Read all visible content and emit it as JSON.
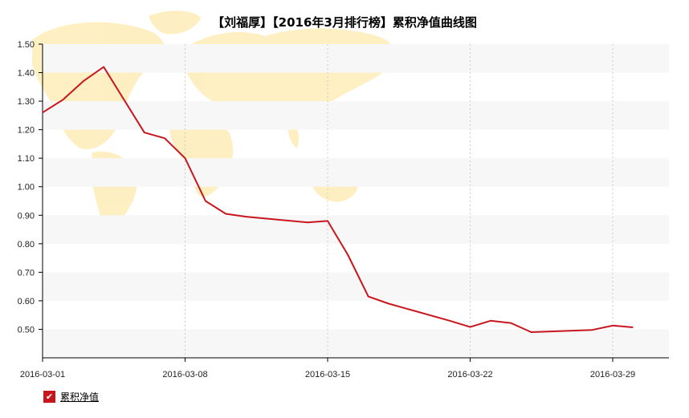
{
  "chart_data": {
    "type": "line",
    "title": "【刘福厚】【2016年3月排行榜】累积净值曲线图",
    "xlabel": "",
    "ylabel": "",
    "x_ticks": [
      "2016-03-01",
      "2016-03-08",
      "2016-03-15",
      "2016-03-22",
      "2016-03-29"
    ],
    "y_ticks": [
      "0.50",
      "0.60",
      "0.70",
      "0.80",
      "0.90",
      "1.00",
      "1.10",
      "1.20",
      "1.30",
      "1.40",
      "1.50"
    ],
    "ylim": [
      0.4,
      1.5
    ],
    "grid": {
      "x": true,
      "y": true
    },
    "legend_position": "bottom-left",
    "series": [
      {
        "name": "累积净值",
        "color": "#c8161d",
        "points": [
          {
            "x": "2016-03-01",
            "y": 1.26
          },
          {
            "x": "2016-03-02",
            "y": 1.305
          },
          {
            "x": "2016-03-03",
            "y": 1.37
          },
          {
            "x": "2016-03-04",
            "y": 1.42
          },
          {
            "x": "2016-03-06",
            "y": 1.19
          },
          {
            "x": "2016-03-07",
            "y": 1.17
          },
          {
            "x": "2016-03-08",
            "y": 1.1
          },
          {
            "x": "2016-03-09",
            "y": 0.95
          },
          {
            "x": "2016-03-10",
            "y": 0.905
          },
          {
            "x": "2016-03-11",
            "y": 0.895
          },
          {
            "x": "2016-03-14",
            "y": 0.875
          },
          {
            "x": "2016-03-15",
            "y": 0.88
          },
          {
            "x": "2016-03-16",
            "y": 0.76
          },
          {
            "x": "2016-03-17",
            "y": 0.615
          },
          {
            "x": "2016-03-18",
            "y": 0.59
          },
          {
            "x": "2016-03-21",
            "y": 0.53
          },
          {
            "x": "2016-03-22",
            "y": 0.508
          },
          {
            "x": "2016-03-23",
            "y": 0.53
          },
          {
            "x": "2016-03-24",
            "y": 0.522
          },
          {
            "x": "2016-03-25",
            "y": 0.49
          },
          {
            "x": "2016-03-28",
            "y": 0.498
          },
          {
            "x": "2016-03-29",
            "y": 0.513
          },
          {
            "x": "2016-03-30",
            "y": 0.507
          }
        ]
      }
    ]
  },
  "legend": {
    "label": "累积净值",
    "check_glyph": "✔",
    "checked_color": "#c8161d"
  }
}
